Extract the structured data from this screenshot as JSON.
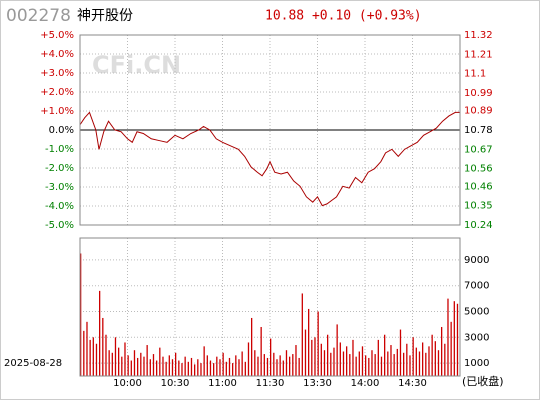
{
  "header": {
    "code": "002278",
    "name": "神开股份",
    "quote": "10.88 +0.10 (+0.93%)",
    "watermark": "CFi.CN",
    "date": "2025-08-28",
    "status": "(已收盘)"
  },
  "chart_data": [
    {
      "type": "line",
      "xlim": [
        0,
        240
      ],
      "ylim": [
        -5,
        5
      ],
      "yticks": [
        {
          "value": 5,
          "label": "+5.0%"
        },
        {
          "value": 4,
          "label": "+4.0%"
        },
        {
          "value": 3,
          "label": "+3.0%"
        },
        {
          "value": 2,
          "label": "+2.0%"
        },
        {
          "value": 1,
          "label": "+1.0%"
        },
        {
          "value": 0,
          "label": "0.0%"
        },
        {
          "value": -1,
          "label": "-1.0%"
        },
        {
          "value": -2,
          "label": "-2.0%"
        },
        {
          "value": -3,
          "label": "-3.0%"
        },
        {
          "value": -4,
          "label": "-4.0%"
        },
        {
          "value": -5,
          "label": "-5.0%"
        }
      ],
      "y2lim": [
        10.24,
        11.32
      ],
      "y2ticks": [
        11.32,
        11.21,
        11.1,
        10.99,
        10.89,
        10.78,
        10.67,
        10.56,
        10.46,
        10.35,
        10.24
      ],
      "grid": true,
      "x": [
        0,
        3,
        6,
        10,
        12,
        15,
        18,
        22,
        26,
        30,
        33,
        36,
        40,
        45,
        50,
        55,
        60,
        65,
        70,
        75,
        78,
        82,
        86,
        90,
        95,
        100,
        104,
        108,
        112,
        115,
        118,
        120,
        123,
        127,
        131,
        135,
        139,
        143,
        147,
        150,
        153,
        156,
        159,
        162,
        166,
        170,
        174,
        178,
        182,
        186,
        190,
        193,
        197,
        201,
        205,
        209,
        213,
        217,
        221,
        225,
        229,
        233,
        237,
        240
      ],
      "series": [
        {
          "name": "price",
          "color": "#aa0000",
          "axis": "y2",
          "values": [
            10.81,
            10.85,
            10.88,
            10.78,
            10.67,
            10.77,
            10.83,
            10.78,
            10.77,
            10.73,
            10.71,
            10.77,
            10.76,
            10.73,
            10.72,
            10.71,
            10.75,
            10.73,
            10.76,
            10.78,
            10.8,
            10.78,
            10.73,
            10.71,
            10.69,
            10.67,
            10.63,
            10.57,
            10.54,
            10.52,
            10.56,
            10.6,
            10.54,
            10.53,
            10.54,
            10.49,
            10.46,
            10.4,
            10.37,
            10.4,
            10.35,
            10.36,
            10.38,
            10.4,
            10.46,
            10.45,
            10.51,
            10.48,
            10.54,
            10.56,
            10.6,
            10.65,
            10.67,
            10.63,
            10.67,
            10.69,
            10.71,
            10.75,
            10.77,
            10.79,
            10.83,
            10.86,
            10.88,
            10.88
          ]
        }
      ]
    },
    {
      "type": "bar",
      "xlim": [
        0,
        240
      ],
      "ylim": [
        0,
        10700
      ],
      "color": "#cc0000",
      "yticks": [
        9000,
        7000,
        5000,
        3000,
        1000
      ],
      "xticks": [
        {
          "value": 30,
          "label": "10:00"
        },
        {
          "value": 60,
          "label": "10:30"
        },
        {
          "value": 90,
          "label": "11:00"
        },
        {
          "value": 120,
          "label": "11:30"
        },
        {
          "value": 150,
          "label": "13:30"
        },
        {
          "value": 180,
          "label": "14:00"
        },
        {
          "value": 210,
          "label": "14:30"
        }
      ],
      "x": [
        0,
        2,
        4,
        6,
        8,
        10,
        12,
        14,
        16,
        18,
        20,
        22,
        24,
        26,
        28,
        30,
        32,
        34,
        36,
        38,
        40,
        42,
        44,
        46,
        48,
        50,
        52,
        54,
        56,
        58,
        60,
        62,
        64,
        66,
        68,
        70,
        72,
        74,
        76,
        78,
        80,
        82,
        84,
        86,
        88,
        90,
        92,
        94,
        96,
        98,
        100,
        102,
        104,
        106,
        108,
        110,
        112,
        114,
        116,
        118,
        120,
        122,
        124,
        126,
        128,
        130,
        132,
        134,
        136,
        138,
        140,
        142,
        144,
        146,
        148,
        150,
        152,
        154,
        156,
        158,
        160,
        162,
        164,
        166,
        168,
        170,
        172,
        174,
        176,
        178,
        180,
        182,
        184,
        186,
        188,
        190,
        192,
        194,
        196,
        198,
        200,
        202,
        204,
        206,
        208,
        210,
        212,
        214,
        216,
        218,
        220,
        222,
        224,
        226,
        228,
        230,
        232,
        234,
        236,
        238
      ],
      "values": [
        9500,
        3500,
        4200,
        2800,
        3000,
        2500,
        6600,
        4500,
        3200,
        2000,
        1800,
        3000,
        2200,
        1500,
        2600,
        1600,
        1200,
        2000,
        1400,
        1800,
        1500,
        2400,
        1300,
        1700,
        1200,
        2200,
        1500,
        1100,
        1600,
        1300,
        1800,
        1200,
        1000,
        1500,
        1100,
        1400,
        900,
        1300,
        1000,
        2300,
        1600,
        1200,
        1000,
        1500,
        1300,
        1800,
        1100,
        1400,
        1000,
        1600,
        1300,
        1900,
        1100,
        2600,
        4500,
        2000,
        1500,
        3800,
        1700,
        1400,
        2900,
        1800,
        1300,
        1600,
        1200,
        2000,
        1500,
        1700,
        2400,
        1400,
        6400,
        3600,
        5200,
        2800,
        3000,
        5000,
        2500,
        2000,
        3200,
        1800,
        2200,
        4000,
        2600,
        1900,
        2300,
        1700,
        2800,
        1500,
        1900,
        2300,
        1600,
        1400,
        2000,
        1700,
        2800,
        1500,
        3200,
        1900,
        2400,
        1700,
        2100,
        3600,
        1800,
        2500,
        1600,
        3000,
        2200,
        1900,
        2600,
        1800,
        2300,
        3200,
        2700,
        2000,
        3800,
        2500,
        6000,
        4200,
        5800,
        5600
      ]
    }
  ]
}
